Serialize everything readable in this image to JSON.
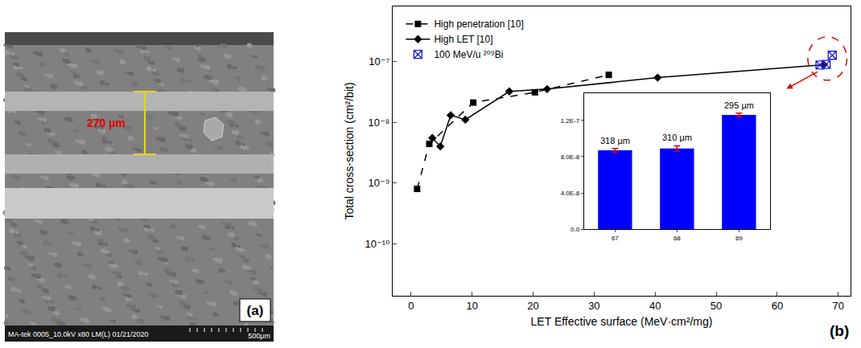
{
  "image_panel": {
    "panel_label": "(a)",
    "scale_annotation": "270 µm",
    "footer": "MA-tek 0005_10.0kV x80 LM(L) 01/21/2020",
    "scale_bar": "500µm"
  },
  "chart_data": [
    {
      "type": "line",
      "x_label": "LET Effective surface (MeV·cm²/mg)",
      "y_label": "Total cross-section (cm²/bit)",
      "log": "y",
      "grid": false,
      "legend": "top-left",
      "xlim": [
        -3,
        72
      ],
      "xticks": [
        0,
        10,
        20,
        30,
        40,
        50,
        60,
        70
      ],
      "ylim": [
        1.4e-11,
        8e-07
      ],
      "yticks": [
        {
          "value": 1e-10,
          "label": "10⁻¹⁰"
        },
        {
          "value": 1e-09,
          "label": "10⁻⁹"
        },
        {
          "value": 1e-08,
          "label": "10⁻⁸"
        },
        {
          "value": 1e-07,
          "label": "10⁻⁷"
        }
      ],
      "annotations": [
        "(b)"
      ],
      "series": [
        {
          "name": "High penetration [10]",
          "color": "#000000",
          "marker": "square",
          "line_style": "dashed",
          "x": [
            1.0,
            3.0,
            10.2,
            20.3,
            32.4
          ],
          "values": [
            8e-10,
            4.4e-09,
            2.1e-08,
            3.1e-08,
            6e-08
          ]
        },
        {
          "name": "High LET [10]",
          "color": "#000000",
          "marker": "diamond",
          "line_style": "solid",
          "x": [
            3.5,
            4.8,
            6.5,
            8.9,
            16.1,
            22.3,
            40.4,
            67.6
          ],
          "values": [
            5.5e-09,
            4e-09,
            1.3e-08,
            1.1e-08,
            3.2e-08,
            3.5e-08,
            5.4e-08,
            8.8e-08
          ]
        },
        {
          "name": "100 MeV/u ²⁰⁹Bi",
          "color": "#1f1fd0",
          "marker": "square-x-open",
          "line_style": "none",
          "x": [
            67,
            68,
            69
          ],
          "values": [
            8.7e-08,
            8.9e-08,
            1.26e-07
          ]
        }
      ]
    },
    {
      "type": "bar",
      "xlim": [
        66.5,
        69.5
      ],
      "xticks": [
        67,
        68,
        69
      ],
      "ylim": [
        0,
        1.5e-07
      ],
      "yticks": [
        {
          "value": 0,
          "label": "0.0"
        },
        {
          "value": 4e-08,
          "label": "4.0E-8"
        },
        {
          "value": 8e-08,
          "label": "8.0E-8"
        },
        {
          "value": 1.2e-07,
          "label": "1.2E-7"
        }
      ],
      "x": [
        67,
        68,
        69
      ],
      "values": [
        8.7e-08,
        8.9e-08,
        1.26e-07
      ],
      "errors": [
        2e-09,
        3e-09,
        2e-09
      ],
      "bar_texts": [
        "318 µm",
        "310 µm",
        "295 µm"
      ],
      "color": "#0000ff"
    }
  ]
}
